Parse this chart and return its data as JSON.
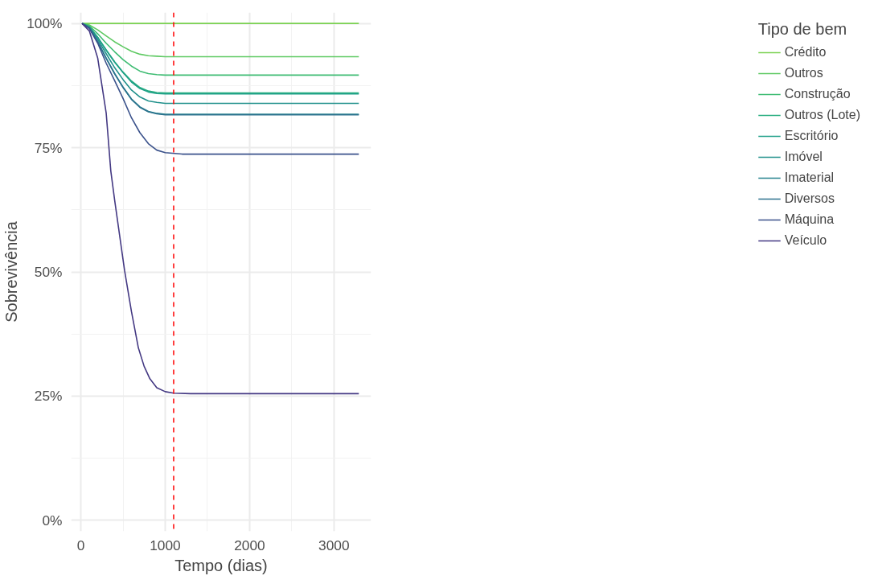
{
  "chart_data": {
    "type": "line",
    "xlabel": "Tempo (dias)",
    "ylabel": "Sobrevivência",
    "legend_title": "Tipo de bem",
    "legend": "right",
    "grid": true,
    "line_style": "solid",
    "xlim": [
      -115,
      3440
    ],
    "xticks": [
      0,
      1000,
      2000,
      3000
    ],
    "ylim": [
      -0.022,
      1.022
    ],
    "yticks": [
      {
        "value": 0,
        "label": "0%"
      },
      {
        "value": 0.25,
        "label": "25%"
      },
      {
        "value": 0.5,
        "label": "50%"
      },
      {
        "value": 0.75,
        "label": "75%"
      },
      {
        "value": 1,
        "label": "100%"
      }
    ],
    "ref_lines": [
      {
        "axis": "x",
        "value": 1100,
        "color": "#ff0000",
        "line_style": "dashed"
      }
    ],
    "series": [
      {
        "name": "Crédito",
        "color": "#7ad151",
        "x": [
          14,
          3295
        ],
        "values": [
          1,
          1
        ]
      },
      {
        "name": "Outros",
        "color": "#5ec962",
        "x": [
          14,
          100,
          200,
          300,
          400,
          500,
          600,
          700,
          800,
          900,
          1000,
          1200,
          3295
        ],
        "values": [
          1,
          0.997,
          0.987,
          0.975,
          0.963,
          0.953,
          0.944,
          0.938,
          0.935,
          0.934,
          0.933,
          0.933,
          0.933
        ]
      },
      {
        "name": "Construção",
        "color": "#3fbc73",
        "x": [
          14,
          100,
          200,
          300,
          400,
          500,
          600,
          700,
          800,
          900,
          1000,
          1200,
          3295
        ],
        "values": [
          1,
          0.995,
          0.979,
          0.96,
          0.943,
          0.927,
          0.914,
          0.904,
          0.899,
          0.897,
          0.896,
          0.896,
          0.896
        ]
      },
      {
        "name": "Outros (Lote)",
        "color": "#28ae80",
        "x": [
          14,
          100,
          200,
          300,
          400,
          500,
          600,
          700,
          800,
          900,
          1000,
          1200,
          3295
        ],
        "values": [
          1,
          0.993,
          0.972,
          0.947,
          0.923,
          0.902,
          0.884,
          0.871,
          0.864,
          0.861,
          0.86,
          0.86,
          0.86
        ]
      },
      {
        "name": "Escritório",
        "color": "#1fa088",
        "x": [
          14,
          100,
          200,
          300,
          400,
          500,
          600,
          700,
          800,
          900,
          1000,
          1200,
          3295
        ],
        "values": [
          1,
          0.993,
          0.972,
          0.946,
          0.922,
          0.901,
          0.882,
          0.869,
          0.862,
          0.859,
          0.858,
          0.858,
          0.858
        ]
      },
      {
        "name": "Imóvel",
        "color": "#21918c",
        "x": [
          14,
          100,
          200,
          300,
          400,
          500,
          600,
          700,
          800,
          900,
          1000,
          1200,
          3295
        ],
        "values": [
          1,
          0.992,
          0.968,
          0.939,
          0.911,
          0.887,
          0.866,
          0.852,
          0.844,
          0.841,
          0.839,
          0.839,
          0.839
        ]
      },
      {
        "name": "Imaterial",
        "color": "#26828e",
        "x": [
          14,
          100,
          200,
          300,
          400,
          500,
          600,
          700,
          800,
          900,
          1000,
          1200,
          3295
        ],
        "values": [
          1,
          0.991,
          0.963,
          0.93,
          0.899,
          0.872,
          0.848,
          0.832,
          0.823,
          0.819,
          0.817,
          0.817,
          0.817
        ]
      },
      {
        "name": "Diversos",
        "color": "#2c728e",
        "x": [
          14,
          100,
          200,
          300,
          400,
          500,
          600,
          700,
          800,
          900,
          1000,
          1200,
          3295
        ],
        "values": [
          1,
          0.991,
          0.963,
          0.93,
          0.899,
          0.871,
          0.847,
          0.831,
          0.822,
          0.818,
          0.816,
          0.816,
          0.816
        ]
      },
      {
        "name": "Máquina",
        "color": "#3b528b",
        "x": [
          14,
          100,
          200,
          300,
          400,
          500,
          600,
          700,
          800,
          900,
          1000,
          1200,
          3295
        ],
        "values": [
          1,
          0.99,
          0.96,
          0.92,
          0.885,
          0.849,
          0.81,
          0.78,
          0.758,
          0.745,
          0.74,
          0.737,
          0.737
        ]
      },
      {
        "name": "Veículo",
        "color": "#443983",
        "x": [
          14,
          100,
          200,
          300,
          355,
          400,
          518,
          600,
          682,
          750,
          818,
          900,
          1000,
          1100,
          1300,
          3295
        ],
        "values": [
          1,
          0.985,
          0.93,
          0.82,
          0.703,
          0.645,
          0.503,
          0.42,
          0.347,
          0.31,
          0.285,
          0.267,
          0.259,
          0.256,
          0.255,
          0.255
        ]
      }
    ]
  }
}
